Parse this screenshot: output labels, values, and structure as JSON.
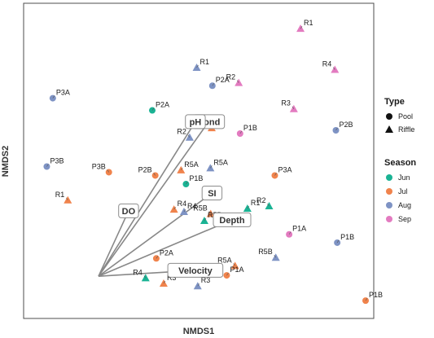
{
  "chart_data": {
    "type": "scatter",
    "xlabel": "NMDS1",
    "ylabel": "NMDS2",
    "xlim": [
      0,
      1
    ],
    "ylim": [
      0,
      1
    ],
    "colors": {
      "Jun": "#1ab394",
      "Jul": "#f0834c",
      "Aug": "#7e93c4",
      "Sep": "#e37bc0",
      "vector": "#888888"
    },
    "legend": {
      "placement": "right",
      "type": {
        "title": "Type",
        "items": [
          {
            "label": "Pool",
            "shape": "circle"
          },
          {
            "label": "Riffle",
            "shape": "triangle"
          }
        ]
      },
      "season": {
        "title": "Season",
        "items": [
          "Jun",
          "Jul",
          "Aug",
          "Sep"
        ]
      }
    },
    "vectors_origin": {
      "x": 0.2,
      "y": 0.12
    },
    "vectors": [
      {
        "label": "Cond",
        "x": 0.53,
        "y": 0.64
      },
      {
        "label": "SI",
        "x": 0.54,
        "y": 0.4
      },
      {
        "label": "Depth",
        "x": 0.6,
        "y": 0.31
      },
      {
        "label": "Velocity",
        "x": 0.49,
        "y": 0.14
      },
      {
        "label": "pH",
        "x": 0.49,
        "y": 0.64
      },
      {
        "label": "DO",
        "x": 0.29,
        "y": 0.34
      }
    ],
    "points": [
      {
        "label": "R1",
        "season": "Sep",
        "shape": "triangle",
        "x": 0.805,
        "y": 0.953
      },
      {
        "label": "R4",
        "season": "Sep",
        "shape": "triangle",
        "x": 0.908,
        "y": 0.815
      },
      {
        "label": "R1",
        "season": "Aug",
        "shape": "triangle",
        "x": 0.494,
        "y": 0.822
      },
      {
        "label": "P2A",
        "season": "Aug",
        "shape": "circle",
        "x": 0.541,
        "y": 0.761
      },
      {
        "label": "R2",
        "season": "Sep",
        "shape": "triangle",
        "x": 0.62,
        "y": 0.771
      },
      {
        "label": "P3A",
        "season": "Aug",
        "shape": "circle",
        "x": 0.063,
        "y": 0.719
      },
      {
        "label": "P2A",
        "season": "Jun",
        "shape": "circle",
        "x": 0.361,
        "y": 0.678
      },
      {
        "label": "R3",
        "season": "Sep",
        "shape": "triangle",
        "x": 0.785,
        "y": 0.683
      },
      {
        "label": "R2",
        "season": "Jul",
        "shape": "triangle",
        "x": 0.539,
        "y": 0.619
      },
      {
        "label": "P1B",
        "season": "Sep",
        "shape": "circle",
        "x": 0.624,
        "y": 0.6
      },
      {
        "label": "R2",
        "season": "Aug",
        "shape": "triangle",
        "x": 0.473,
        "y": 0.587
      },
      {
        "label": "P2B",
        "season": "Aug",
        "shape": "circle",
        "x": 0.911,
        "y": 0.611
      },
      {
        "label": "P3B",
        "season": "Aug",
        "shape": "circle",
        "x": 0.045,
        "y": 0.489
      },
      {
        "label": "P3B",
        "season": "Jul",
        "shape": "circle",
        "x": 0.231,
        "y": 0.47
      },
      {
        "label": "R5A",
        "season": "Jul",
        "shape": "triangle",
        "x": 0.447,
        "y": 0.477
      },
      {
        "label": "P1B",
        "season": "Jun",
        "shape": "circle",
        "x": 0.462,
        "y": 0.43
      },
      {
        "label": "P2B",
        "season": "Jul",
        "shape": "circle",
        "x": 0.37,
        "y": 0.459
      },
      {
        "label": "P3A",
        "season": "Jul",
        "shape": "circle",
        "x": 0.728,
        "y": 0.459
      },
      {
        "label": "R5A",
        "season": "Aug",
        "shape": "triangle",
        "x": 0.535,
        "y": 0.484
      },
      {
        "label": "R1",
        "season": "Jul",
        "shape": "triangle",
        "x": 0.108,
        "y": 0.376
      },
      {
        "label": "R4",
        "season": "Jul",
        "shape": "triangle",
        "x": 0.426,
        "y": 0.345
      },
      {
        "label": "R4",
        "season": "Aug",
        "shape": "triangle",
        "x": 0.456,
        "y": 0.337
      },
      {
        "label": "R5B",
        "season": "Jul",
        "shape": "triangle",
        "x": 0.536,
        "y": 0.33
      },
      {
        "label": "R5B",
        "season": "Jun",
        "shape": "triangle",
        "x": 0.517,
        "y": 0.307
      },
      {
        "label": "R1",
        "season": "Jun",
        "shape": "triangle",
        "x": 0.646,
        "y": 0.348
      },
      {
        "label": "R2",
        "season": "Jun",
        "shape": "triangle",
        "x": 0.711,
        "y": 0.356
      },
      {
        "label": "P1A",
        "season": "Sep",
        "shape": "circle",
        "x": 0.771,
        "y": 0.261
      },
      {
        "label": "P1B",
        "season": "Aug",
        "shape": "circle",
        "x": 0.915,
        "y": 0.233
      },
      {
        "label": "R5B",
        "season": "Aug",
        "shape": "triangle",
        "x": 0.731,
        "y": 0.183
      },
      {
        "label": "P2A",
        "season": "Jul",
        "shape": "circle",
        "x": 0.373,
        "y": 0.18
      },
      {
        "label": "R3",
        "season": "Jun",
        "shape": "triangle",
        "x": 0.483,
        "y": 0.136
      },
      {
        "label": "R4",
        "season": "Jun",
        "shape": "triangle",
        "x": 0.341,
        "y": 0.114
      },
      {
        "label": "R3",
        "season": "Jul",
        "shape": "triangle",
        "x": 0.395,
        "y": 0.096
      },
      {
        "label": "R3",
        "season": "Aug",
        "shape": "triangle",
        "x": 0.497,
        "y": 0.087
      },
      {
        "label": "R5A",
        "season": "Jul",
        "shape": "triangle",
        "x": 0.609,
        "y": 0.155
      },
      {
        "label": "P1A",
        "season": "Jul",
        "shape": "circle",
        "x": 0.584,
        "y": 0.123
      },
      {
        "label": "P1B",
        "season": "Jul",
        "shape": "circle",
        "x": 1.0,
        "y": 0.038
      }
    ]
  }
}
